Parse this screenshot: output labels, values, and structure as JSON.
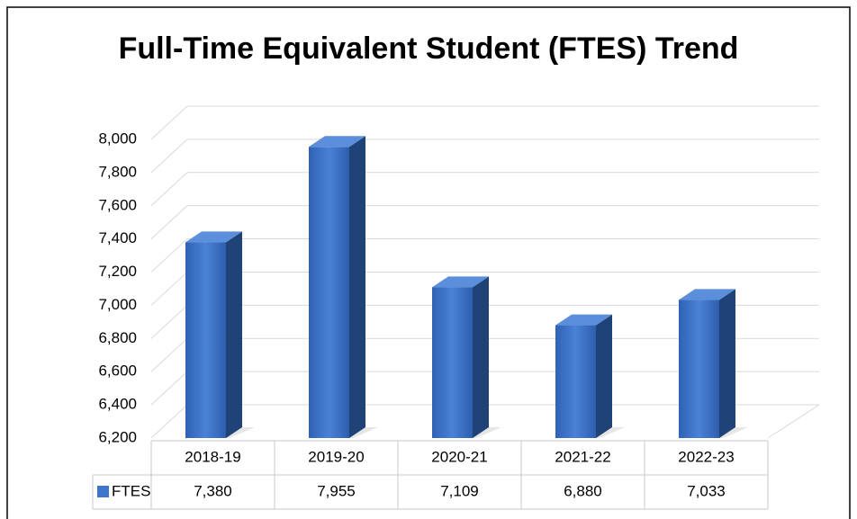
{
  "chart_data": {
    "type": "bar3d",
    "title": "Full-Time Equivalent Student (FTES) Trend",
    "categories": [
      "2018-19",
      "2019-20",
      "2020-21",
      "2021-22",
      "2022-23"
    ],
    "series": [
      {
        "name": "FTES",
        "color": "#3f74c9",
        "values": [
          7380,
          7955,
          7109,
          6880,
          7033
        ],
        "value_labels": [
          "7,380",
          "7,955",
          "7,109",
          "6,880",
          "7,033"
        ]
      }
    ],
    "ylim": [
      6200,
      8000
    ],
    "yticks": [
      {
        "value": 6200,
        "label": "6,200"
      },
      {
        "value": 6400,
        "label": "6,400"
      },
      {
        "value": 6600,
        "label": "6,600"
      },
      {
        "value": 6800,
        "label": "6,800"
      },
      {
        "value": 7000,
        "label": "7,000"
      },
      {
        "value": 7200,
        "label": "7,200"
      },
      {
        "value": 7400,
        "label": "7,400"
      },
      {
        "value": 7600,
        "label": "7,600"
      },
      {
        "value": 7800,
        "label": "7,800"
      },
      {
        "value": 8000,
        "label": "8,000"
      }
    ],
    "grid": true
  }
}
